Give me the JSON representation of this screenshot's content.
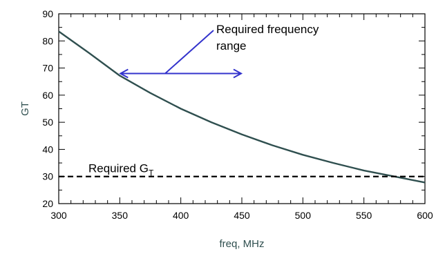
{
  "chart_data": {
    "type": "line",
    "xlabel": "freq, MHz",
    "ylabel": "GT",
    "xlim": [
      300,
      600
    ],
    "ylim": [
      20,
      90
    ],
    "x_ticks": [
      300,
      350,
      400,
      450,
      500,
      550,
      600
    ],
    "y_ticks": [
      20,
      30,
      40,
      50,
      60,
      70,
      80,
      90
    ],
    "grid": false,
    "series": [
      {
        "color": "#2f4f4f",
        "x": [
          300,
          325,
          350,
          375,
          400,
          425,
          450,
          475,
          500,
          525,
          550,
          575,
          600
        ],
        "y": [
          83.5,
          75.5,
          67.2,
          60.8,
          55.0,
          50.0,
          45.5,
          41.5,
          38.0,
          35.0,
          32.2,
          30.0,
          27.8
        ]
      }
    ],
    "reference_line": {
      "y": 30,
      "style": "dashed",
      "color": "#000000"
    },
    "annotations": {
      "required_gt": {
        "main": "Required G",
        "sub": "T",
        "x": 325,
        "y": 30
      },
      "required_range": {
        "line1": "Required frequency",
        "line2": "range",
        "arrow_from": 350,
        "arrow_to": 450,
        "arrow_y": 69,
        "color": "#3333cc"
      }
    }
  }
}
